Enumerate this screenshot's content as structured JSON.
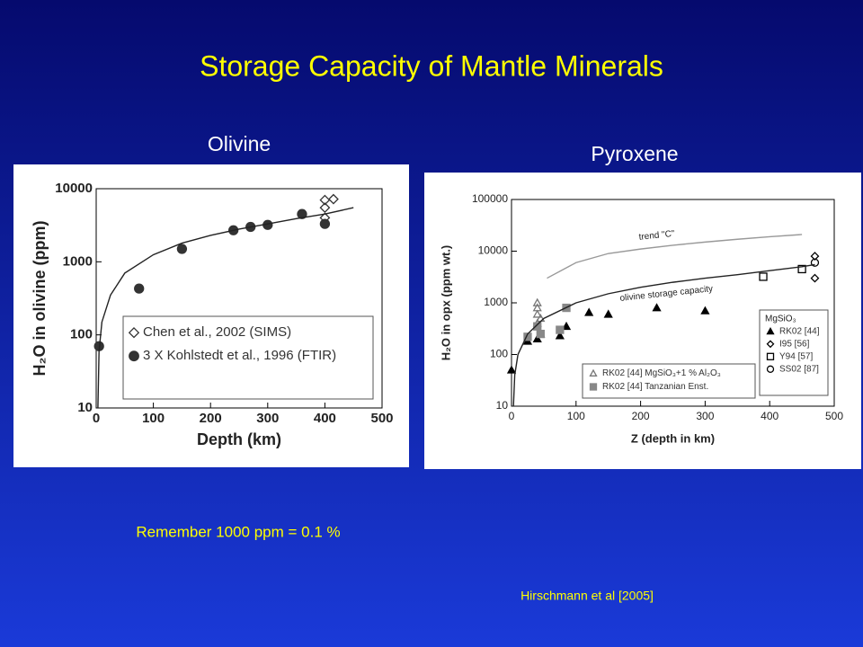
{
  "slide": {
    "title": "Storage Capacity of Mantle Minerals",
    "note": "Remember 1000 ppm = 0.1 %",
    "citation": "Hirschmann et al [2005]"
  },
  "chart_data": [
    {
      "type": "scatter",
      "title": "Olivine",
      "x_label": "Depth (km)",
      "y_label": "H₂O in olivine (ppm)",
      "xlim": [
        0,
        500
      ],
      "xticks": [
        0,
        100,
        200,
        300,
        400,
        500
      ],
      "ylim": [
        10,
        10000
      ],
      "yticks": [
        10,
        100,
        1000,
        10000
      ],
      "log_y": true,
      "legend_corner": "bottom-right",
      "series": [
        {
          "name": "Chen et al., 2002 (SIMS)",
          "marker": "diamond-open",
          "color": "#333333",
          "x": [
            400,
            400,
            400,
            415
          ],
          "y": [
            7000,
            5500,
            4000,
            7200
          ]
        },
        {
          "name": "3 X Kohlstedt et al., 1996 (FTIR)",
          "marker": "circle",
          "color": "#333333",
          "x": [
            5,
            75,
            150,
            240,
            270,
            300,
            360,
            400
          ],
          "y": [
            70,
            430,
            1500,
            2700,
            3000,
            3200,
            4500,
            3300
          ]
        },
        {
          "marker": "line",
          "color": "#222222",
          "x": [
            3,
            5,
            10,
            25,
            50,
            100,
            150,
            200,
            250,
            300,
            350,
            400,
            450
          ],
          "y": [
            10,
            60,
            150,
            350,
            700,
            1250,
            1800,
            2300,
            2800,
            3300,
            3900,
            4500,
            5500
          ]
        }
      ]
    },
    {
      "type": "scatter",
      "title": "Pyroxene",
      "x_label": "Z (depth in km)",
      "y_label": "H₂O in opx (ppm wt.)",
      "xlim": [
        0,
        500
      ],
      "xticks": [
        0,
        100,
        200,
        300,
        400,
        500
      ],
      "ylim": [
        10,
        100000
      ],
      "yticks": [
        10,
        100,
        1000,
        10000,
        100000
      ],
      "log_y": true,
      "legend_title": "MgSiO₃",
      "annotations": [
        {
          "text": "trend \"C\"",
          "x": 225,
          "y": 20000
        },
        {
          "text": "olivine storage capacity",
          "x": 240,
          "y": 1500
        }
      ],
      "series": [
        {
          "name": "RK02 [44]",
          "marker": "triangle",
          "color": "#000000",
          "legend": "bottom-right",
          "x": [
            0,
            25,
            40,
            45,
            75,
            85,
            120,
            150,
            225,
            300
          ],
          "y": [
            50,
            180,
            200,
            250,
            230,
            350,
            650,
            600,
            800,
            700
          ]
        },
        {
          "name": "I95 [56]",
          "marker": "diamond-open",
          "color": "#000000",
          "legend": "bottom-right",
          "x": [
            470,
            470
          ],
          "y": [
            8000,
            3000
          ]
        },
        {
          "name": "Y94 [57]",
          "marker": "square-open",
          "color": "#000000",
          "legend": "bottom-right",
          "x": [
            390,
            450
          ],
          "y": [
            3200,
            4500
          ]
        },
        {
          "name": "SS02 [87]",
          "marker": "circle-open",
          "color": "#000000",
          "legend": "bottom-right",
          "x": [
            470
          ],
          "y": [
            6000
          ]
        },
        {
          "name": "RK02 [44] MgSiO₃+1 % Al₂O₃",
          "marker": "triangle-open",
          "color": "#777777",
          "legend": "bottom-center",
          "x": [
            40,
            40,
            40,
            40,
            45
          ],
          "y": [
            400,
            600,
            800,
            1000,
            500
          ]
        },
        {
          "name": "RK02 [44] Tanzanian Enst.",
          "marker": "square",
          "color": "#888888",
          "legend": "bottom-center",
          "x": [
            25,
            40,
            45,
            75,
            85
          ],
          "y": [
            220,
            350,
            250,
            300,
            800
          ]
        },
        {
          "marker": "line",
          "color": "#999999",
          "x": [
            55,
            100,
            150,
            200,
            250,
            300,
            350,
            400,
            450
          ],
          "y": [
            3000,
            6000,
            9000,
            11000,
            13000,
            15000,
            17000,
            19000,
            21000
          ]
        },
        {
          "marker": "line",
          "color": "#222222",
          "x": [
            3,
            5,
            10,
            25,
            50,
            100,
            150,
            200,
            250,
            300,
            350,
            400,
            450,
            470
          ],
          "y": [
            10,
            40,
            100,
            250,
            500,
            1000,
            1500,
            2000,
            2500,
            3000,
            3500,
            4200,
            5000,
            5500
          ]
        }
      ]
    }
  ]
}
